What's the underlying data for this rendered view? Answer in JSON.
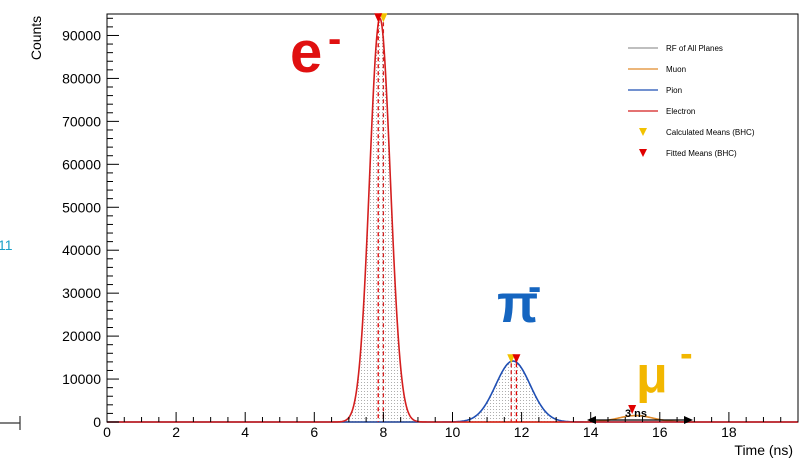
{
  "chart_data": {
    "type": "line",
    "xlabel": "Time (ns)",
    "ylabel": "Counts",
    "xlim": [
      0,
      20
    ],
    "ylim": [
      0,
      95000
    ],
    "xticks": [
      "0",
      "2",
      "4",
      "6",
      "8",
      "10",
      "12",
      "14",
      "16",
      "18"
    ],
    "yticks": [
      "0",
      "10000",
      "20000",
      "30000",
      "40000",
      "50000",
      "60000",
      "70000",
      "80000",
      "90000"
    ],
    "series": [
      {
        "name": "RF of All Planes",
        "color": "#999999",
        "mean": 0,
        "sigma": 1,
        "amplitude": 0
      },
      {
        "name": "Muon",
        "color": "#e08a2a",
        "mean": 15.3,
        "sigma": 0.5,
        "amplitude": 1500
      },
      {
        "name": "Pion",
        "color": "#1f4fb4",
        "mean": 11.75,
        "sigma": 0.5,
        "amplitude": 14200
      },
      {
        "name": "Electron",
        "color": "#d41f1f",
        "mean": 7.9,
        "sigma": 0.3,
        "amplitude": 94000
      }
    ],
    "markers": [
      {
        "name": "Calculated Means (BHC)",
        "color": "#f2c200",
        "points": [
          [
            8.0,
            94000
          ],
          [
            11.7,
            14600
          ]
        ]
      },
      {
        "name": "Fitted Means (BHC)",
        "color": "#e00000",
        "points": [
          [
            7.85,
            94000
          ],
          [
            11.85,
            14600
          ],
          [
            15.2,
            2800
          ]
        ]
      }
    ],
    "particle_labels": [
      {
        "text": "e",
        "sup": "-",
        "color": "#e01010"
      },
      {
        "text": "π",
        "sup": "-",
        "color": "#1565c0"
      },
      {
        "text": "μ",
        "sup": "-",
        "color": "#f2b700"
      }
    ],
    "annotation": "3 ns",
    "edge_fragment": "11"
  }
}
